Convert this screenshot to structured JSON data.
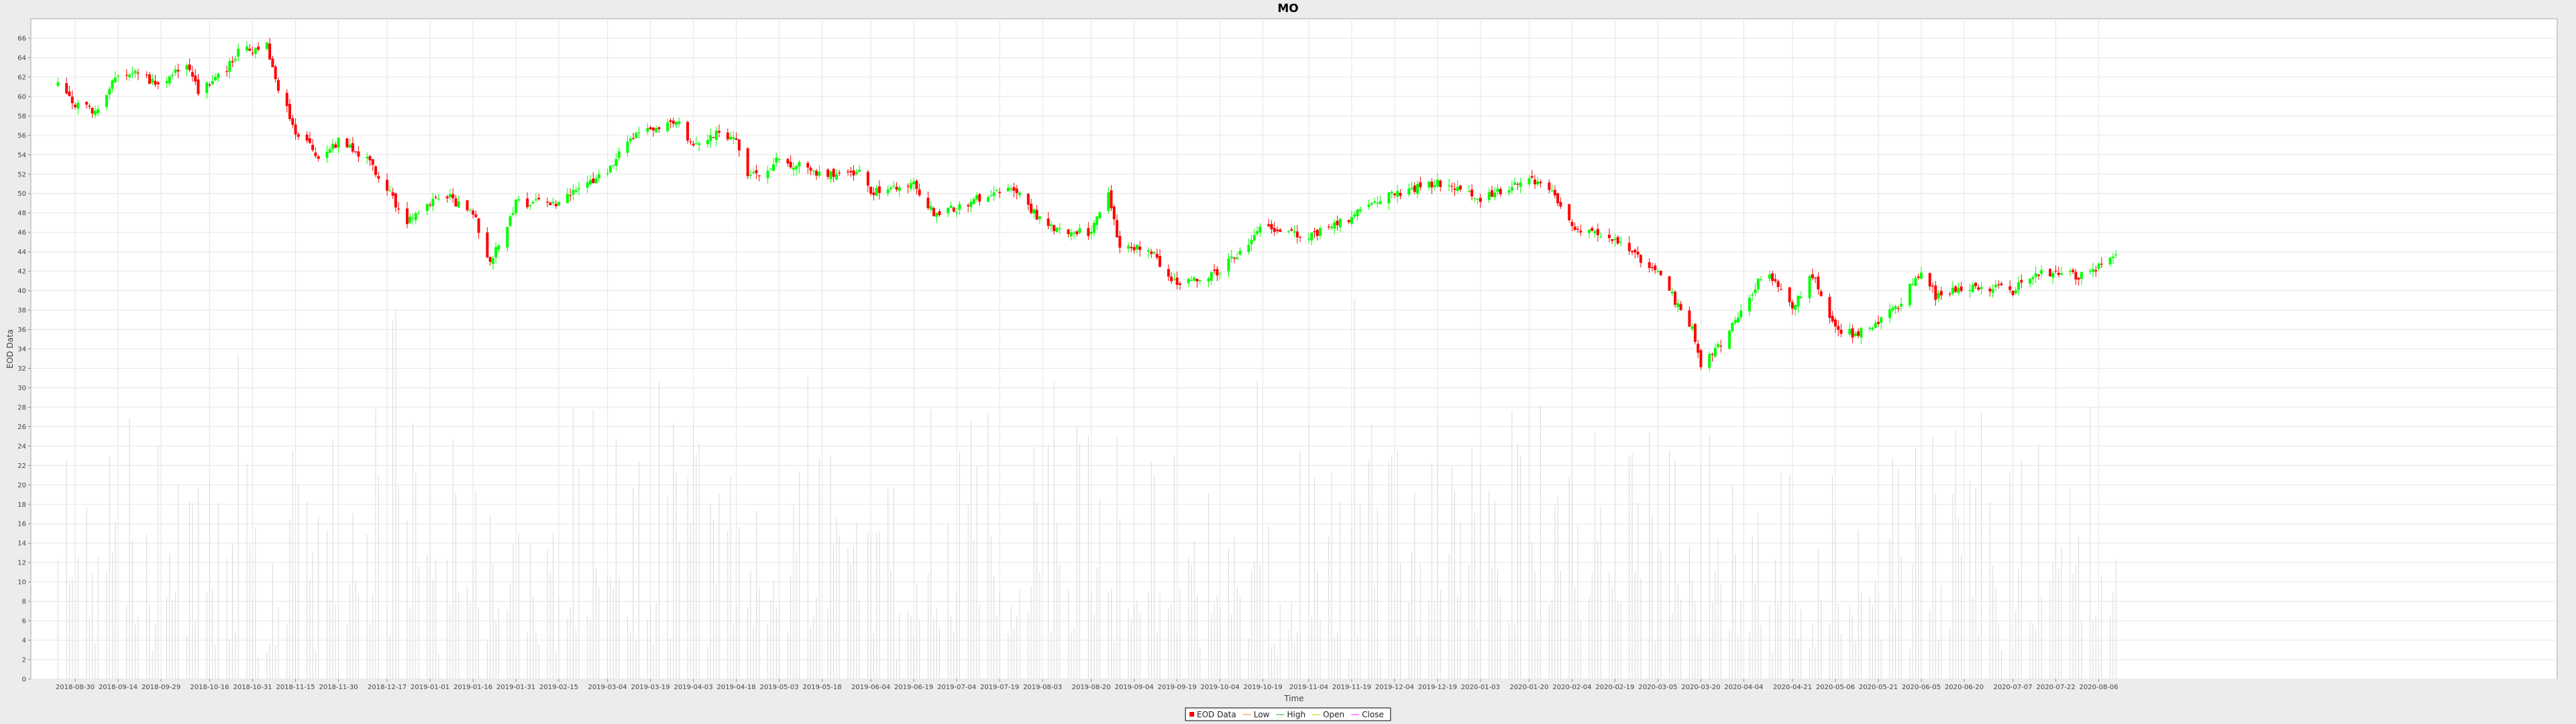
{
  "chart_data": {
    "type": "candlestick",
    "title": "MO",
    "xlabel": "Time",
    "ylabel": "EOD Data",
    "ylim": [
      0,
      68
    ],
    "y_ticks": [
      0,
      2,
      4,
      6,
      8,
      10,
      12,
      14,
      16,
      18,
      20,
      22,
      24,
      26,
      28,
      30,
      32,
      34,
      36,
      38,
      40,
      42,
      44,
      46,
      48,
      50,
      52,
      54,
      56,
      58,
      60,
      62,
      64,
      66
    ],
    "x_tick_labels": [
      "2018-08-30",
      "2018-09-14",
      "2018-09-29",
      "2018-10-16",
      "2018-10-31",
      "2018-11-15",
      "2018-11-30",
      "2018-12-17",
      "2019-01-01",
      "2019-01-16",
      "2019-01-31",
      "2019-02-15",
      "2019-03-04",
      "2019-03-19",
      "2019-04-03",
      "2019-04-18",
      "2019-05-03",
      "2019-05-18",
      "2019-06-04",
      "2019-06-19",
      "2019-07-04",
      "2019-07-19",
      "2019-08-03",
      "2019-08-20",
      "2019-09-04",
      "2019-09-19",
      "2019-10-04",
      "2019-10-19",
      "2019-11-04",
      "2019-11-19",
      "2019-12-04",
      "2019-12-19",
      "2020-01-03",
      "2020-01-20",
      "2020-02-04",
      "2020-02-19",
      "2020-03-05",
      "2020-03-20",
      "2020-04-04",
      "2020-04-21",
      "2020-05-06",
      "2020-05-21",
      "2020-06-05",
      "2020-06-20",
      "2020-07-07",
      "2020-07-22",
      "2020-08-06"
    ],
    "close_path": [
      [
        "2018-08-24",
        61.0
      ],
      [
        "2018-08-30",
        59.2
      ],
      [
        "2018-09-07",
        58.5
      ],
      [
        "2018-09-14",
        62.3
      ],
      [
        "2018-09-21",
        62.5
      ],
      [
        "2018-09-29",
        61.0
      ],
      [
        "2018-10-08",
        63.5
      ],
      [
        "2018-10-12",
        60.5
      ],
      [
        "2018-10-16",
        61.5
      ],
      [
        "2018-10-24",
        63.5
      ],
      [
        "2018-10-27",
        65.5
      ],
      [
        "2018-10-31",
        64.5
      ],
      [
        "2018-11-05",
        65.5
      ],
      [
        "2018-11-08",
        61.5
      ],
      [
        "2018-11-15",
        56.5
      ],
      [
        "2018-11-24",
        53.5
      ],
      [
        "2018-11-30",
        55.5
      ],
      [
        "2018-12-10",
        53.5
      ],
      [
        "2018-12-17",
        50.5
      ],
      [
        "2018-12-24",
        47.0
      ],
      [
        "2019-01-01",
        49.0
      ],
      [
        "2019-01-08",
        49.5
      ],
      [
        "2019-01-16",
        48.0
      ],
      [
        "2019-01-22",
        43.0
      ],
      [
        "2019-01-31",
        49.0
      ],
      [
        "2019-02-15",
        49.0
      ],
      [
        "2019-03-04",
        52.5
      ],
      [
        "2019-03-11",
        55.5
      ],
      [
        "2019-03-19",
        56.5
      ],
      [
        "2019-03-28",
        57.5
      ],
      [
        "2019-04-03",
        55.0
      ],
      [
        "2019-04-12",
        56.5
      ],
      [
        "2019-04-18",
        55.5
      ],
      [
        "2019-04-22",
        51.5
      ],
      [
        "2019-05-03",
        53.5
      ],
      [
        "2019-05-18",
        52.0
      ],
      [
        "2019-05-31",
        52.0
      ],
      [
        "2019-06-04",
        50.0
      ],
      [
        "2019-06-19",
        51.0
      ],
      [
        "2019-06-26",
        48.0
      ],
      [
        "2019-07-04",
        48.5
      ],
      [
        "2019-07-19",
        50.5
      ],
      [
        "2019-07-25",
        50.0
      ],
      [
        "2019-08-03",
        47.0
      ],
      [
        "2019-08-12",
        46.0
      ],
      [
        "2019-08-20",
        46.0
      ],
      [
        "2019-08-26",
        50.0
      ],
      [
        "2019-08-30",
        44.0
      ],
      [
        "2019-09-04",
        44.5
      ],
      [
        "2019-09-10",
        44.0
      ],
      [
        "2019-09-19",
        40.5
      ],
      [
        "2019-10-04",
        42.0
      ],
      [
        "2019-10-19",
        46.5
      ],
      [
        "2019-11-04",
        45.5
      ],
      [
        "2019-11-19",
        47.5
      ],
      [
        "2019-11-26",
        49.0
      ],
      [
        "2019-12-04",
        50.0
      ],
      [
        "2019-12-19",
        51.0
      ],
      [
        "2020-01-03",
        49.5
      ],
      [
        "2020-01-20",
        51.5
      ],
      [
        "2020-01-26",
        51.0
      ],
      [
        "2020-02-04",
        46.5
      ],
      [
        "2020-02-19",
        45.0
      ],
      [
        "2020-03-05",
        42.0
      ],
      [
        "2020-03-11",
        39.0
      ],
      [
        "2020-03-17",
        36.0
      ],
      [
        "2020-03-20",
        32.0
      ],
      [
        "2020-03-28",
        35.0
      ],
      [
        "2020-04-04",
        38.0
      ],
      [
        "2020-04-11",
        42.0
      ],
      [
        "2020-04-21",
        38.5
      ],
      [
        "2020-04-28",
        41.5
      ],
      [
        "2020-05-06",
        36.0
      ],
      [
        "2020-05-13",
        35.5
      ],
      [
        "2020-05-21",
        37.0
      ],
      [
        "2020-05-28",
        38.5
      ],
      [
        "2020-06-05",
        42.0
      ],
      [
        "2020-06-10",
        39.5
      ],
      [
        "2020-06-20",
        40.5
      ],
      [
        "2020-07-07",
        40.0
      ],
      [
        "2020-07-14",
        41.5
      ],
      [
        "2020-07-22",
        42.0
      ],
      [
        "2020-07-30",
        41.5
      ],
      [
        "2020-08-06",
        42.5
      ],
      [
        "2020-08-12",
        43.5
      ]
    ],
    "volume_range": [
      2,
      41
    ],
    "series": [
      {
        "name": "EOD Data",
        "color": "#ff0000"
      },
      {
        "name": "Low",
        "color": "#ffaa66"
      },
      {
        "name": "High",
        "color": "#66cc66"
      },
      {
        "name": "Open",
        "color": "#dddd44"
      },
      {
        "name": "Close",
        "color": "#ff66ff"
      }
    ],
    "up_color": "#00ff00",
    "down_color": "#ff0000",
    "grid": true,
    "legend_position": "bottom-center"
  }
}
